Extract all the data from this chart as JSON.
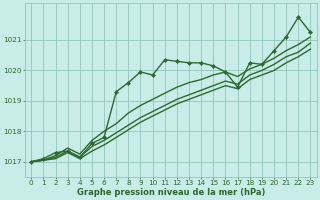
{
  "title": "Graphe pression niveau de la mer (hPa)",
  "background_color": "#c8ece8",
  "grid_color": "#8abfb0",
  "line_color": "#2d6a2d",
  "marker_color": "#2d6a2d",
  "xlim": [
    -0.5,
    23.5
  ],
  "ylim": [
    1016.5,
    1022.2
  ],
  "yticks": [
    1017,
    1018,
    1019,
    1020,
    1021
  ],
  "xticks": [
    0,
    1,
    2,
    3,
    4,
    5,
    6,
    7,
    8,
    9,
    10,
    11,
    12,
    13,
    14,
    15,
    16,
    17,
    18,
    19,
    20,
    21,
    22,
    23
  ],
  "series": [
    [
      1017.0,
      1017.1,
      1017.3,
      1017.35,
      1017.15,
      1017.6,
      1017.8,
      1019.3,
      1019.6,
      1019.95,
      1019.85,
      1020.35,
      1020.3,
      1020.25,
      1020.25,
      1020.15,
      1019.95,
      1019.45,
      1020.25,
      1020.2,
      1020.65,
      1021.1,
      1021.75,
      1021.25
    ],
    [
      1017.0,
      1017.05,
      1017.2,
      1017.45,
      1017.25,
      1017.7,
      1018.0,
      1018.25,
      1018.6,
      1018.85,
      1019.05,
      1019.25,
      1019.45,
      1019.6,
      1019.7,
      1019.85,
      1019.95,
      1019.8,
      1020.05,
      1020.2,
      1020.4,
      1020.65,
      1020.85,
      1021.1
    ],
    [
      1017.0,
      1017.05,
      1017.15,
      1017.35,
      1017.15,
      1017.5,
      1017.7,
      1017.95,
      1018.2,
      1018.45,
      1018.65,
      1018.85,
      1019.05,
      1019.2,
      1019.35,
      1019.5,
      1019.65,
      1019.55,
      1019.85,
      1020.0,
      1020.2,
      1020.45,
      1020.6,
      1020.9
    ],
    [
      1017.0,
      1017.05,
      1017.1,
      1017.3,
      1017.1,
      1017.35,
      1017.55,
      1017.8,
      1018.05,
      1018.3,
      1018.5,
      1018.7,
      1018.9,
      1019.05,
      1019.2,
      1019.35,
      1019.5,
      1019.4,
      1019.7,
      1019.85,
      1020.0,
      1020.25,
      1020.45,
      1020.7
    ]
  ],
  "has_markers": [
    true,
    false,
    false,
    false
  ],
  "linewidths": [
    1.0,
    1.0,
    1.0,
    1.0
  ],
  "marker_size": 2.0,
  "tick_fontsize": 5.2,
  "xlabel_fontsize": 6.0
}
